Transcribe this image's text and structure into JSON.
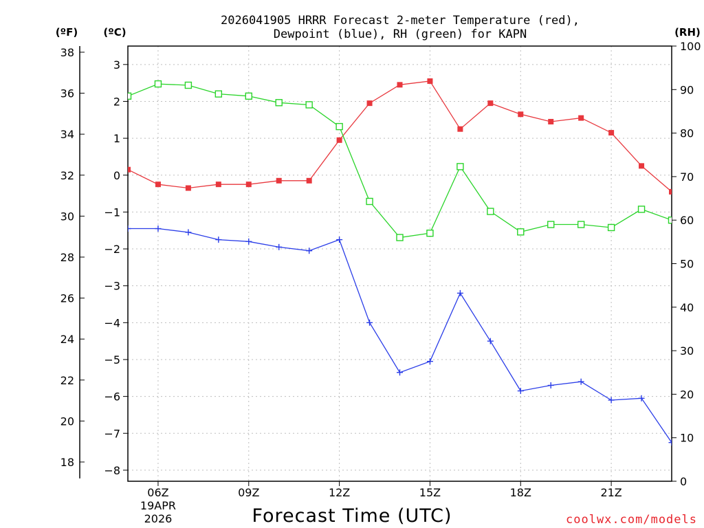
{
  "chart_data": {
    "type": "line",
    "title_line1": "2026041905 HRRR Forecast 2-meter Temperature (red),",
    "title_line2": "Dewpoint (blue), RH (green) for KAPN",
    "xlabel": "Forecast Time (UTC)",
    "credit": "coolwx.com/models",
    "units": {
      "fahrenheit": "(ºF)",
      "celsius": "(ºC)",
      "rh": "(RH)"
    },
    "x_hours": [
      5,
      6,
      7,
      8,
      9,
      10,
      11,
      12,
      13,
      14,
      15,
      16,
      17,
      18,
      19,
      20,
      21,
      22,
      23
    ],
    "xlim": [
      5,
      23
    ],
    "x_ticks": [
      {
        "hour": 6,
        "label": "06Z",
        "sub1": "19APR",
        "sub2": "2026"
      },
      {
        "hour": 9,
        "label": "09Z"
      },
      {
        "hour": 12,
        "label": "12Z"
      },
      {
        "hour": 15,
        "label": "15Z"
      },
      {
        "hour": 18,
        "label": "18Z"
      },
      {
        "hour": 21,
        "label": "21Z"
      }
    ],
    "celsius_axis": {
      "ylim": [
        -8.3,
        3.5
      ],
      "ticks": [
        3,
        2,
        1,
        0,
        -1,
        -2,
        -3,
        -4,
        -5,
        -6,
        -7,
        -8
      ],
      "tick_labels": [
        "3",
        "2",
        "1",
        "0",
        "−1",
        "−2",
        "−3",
        "−4",
        "−5",
        "−6",
        "−7",
        "−8"
      ]
    },
    "fahrenheit_axis": {
      "ticks": [
        38,
        36,
        34,
        32,
        30,
        28,
        26,
        24,
        22,
        20,
        18
      ],
      "tick_labels": [
        "38",
        "36",
        "34",
        "32",
        "30",
        "28",
        "26",
        "24",
        "22",
        "20",
        "18"
      ]
    },
    "rh_axis": {
      "ylim": [
        0,
        100
      ],
      "ticks": [
        100,
        90,
        80,
        70,
        60,
        50,
        40,
        30,
        20,
        10,
        0
      ],
      "tick_labels": [
        "100",
        "90",
        "80",
        "70",
        "60",
        "50",
        "40",
        "30",
        "20",
        "10",
        "0"
      ]
    },
    "series": [
      {
        "name": "Temperature",
        "units": "C",
        "color": "#e8373d",
        "marker": "filled-square",
        "values": [
          0.15,
          -0.25,
          -0.35,
          -0.25,
          -0.25,
          -0.15,
          -0.15,
          0.95,
          1.95,
          2.45,
          2.55,
          1.25,
          1.95,
          1.65,
          1.45,
          1.55,
          1.15,
          0.25,
          -0.45
        ]
      },
      {
        "name": "Dewpoint",
        "units": "C",
        "color": "#2a3de8",
        "marker": "plus",
        "values": [
          -1.45,
          -1.45,
          -1.55,
          -1.75,
          -1.8,
          -1.95,
          -2.05,
          -1.75,
          -4.0,
          -5.35,
          -5.05,
          -3.2,
          -4.5,
          -5.85,
          -5.7,
          -5.6,
          -6.1,
          -6.05,
          -7.25
        ]
      },
      {
        "name": "Relative Humidity",
        "units": "%",
        "color": "#2ad42a",
        "marker": "open-square",
        "values": [
          88.5,
          91.3,
          91.0,
          89.0,
          88.5,
          87.0,
          86.5,
          81.5,
          64.3,
          56.0,
          57.0,
          72.3,
          62.0,
          57.3,
          59.0,
          59.0,
          58.3,
          62.5,
          60.0
        ]
      }
    ]
  }
}
